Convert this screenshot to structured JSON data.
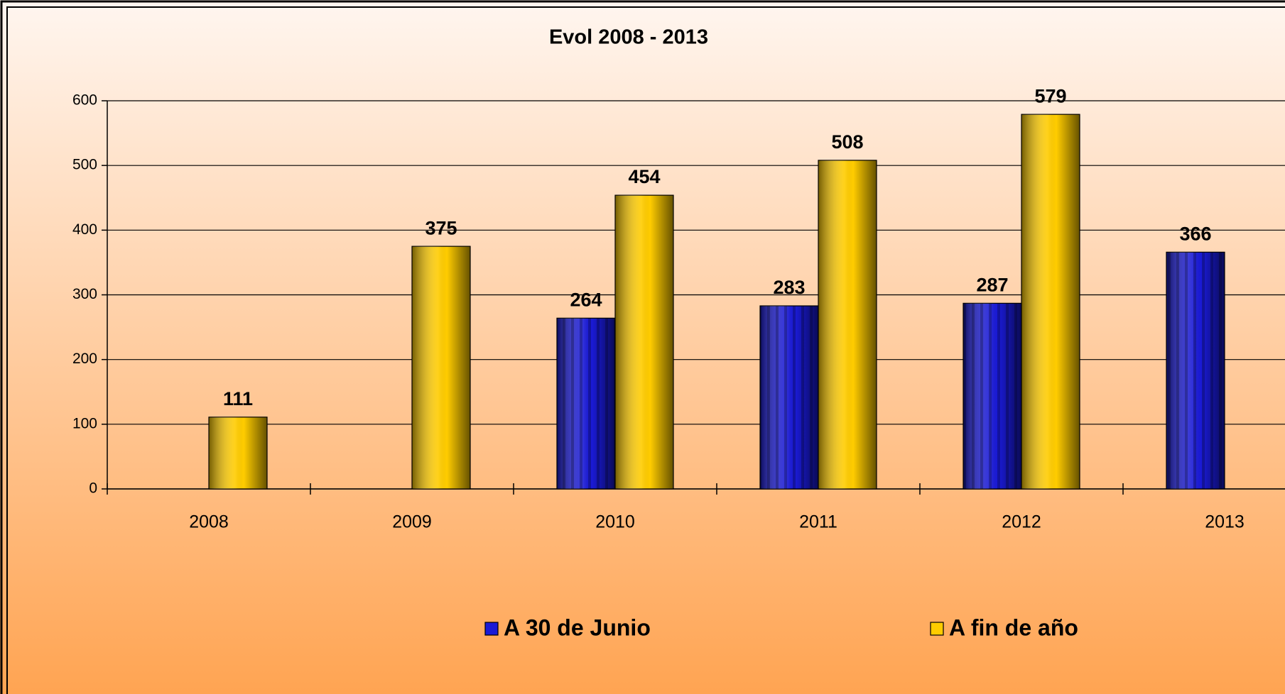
{
  "chart_data": {
    "type": "bar",
    "title": "Evol 2008 - 2013",
    "categories": [
      "2008",
      "2009",
      "2010",
      "2011",
      "2012",
      "2013"
    ],
    "series": [
      {
        "name": "A 30 de Junio",
        "color": "#1a1ad6",
        "values": [
          null,
          null,
          264,
          283,
          287,
          366
        ]
      },
      {
        "name": "A fin de año",
        "color": "#ffcc00",
        "values": [
          111,
          375,
          454,
          508,
          579,
          null
        ]
      }
    ],
    "ylim": [
      0,
      600
    ],
    "yticks": [
      0,
      100,
      200,
      300,
      400,
      500,
      600
    ],
    "grid": true
  }
}
